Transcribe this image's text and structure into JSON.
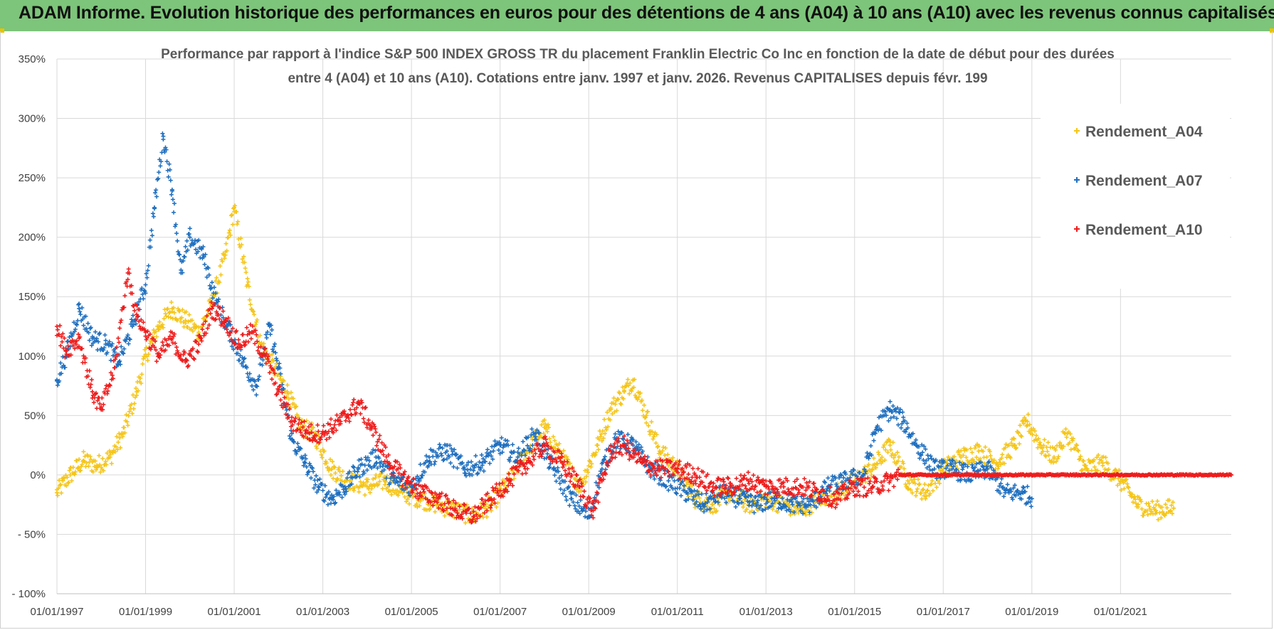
{
  "banner": {
    "title": "ADAM Informe. Evolution historique des performances en euros pour des détentions de 4 ans (A04) à 10 ans (A10) avec les revenus connus capitalisés"
  },
  "colors": {
    "banner_bg": "#7dc57a",
    "A04": "#f5c518",
    "A07": "#1f6fbf",
    "A10": "#ee1c1c",
    "grid": "#d9d9d9"
  },
  "chart_data": {
    "type": "scatter",
    "title": [
      "Performance par rapport à l'indice S&P 500 INDEX GROSS TR  du placement Franklin Electric Co Inc en fonction de la date de début pour des durées",
      "entre 4 (A04) et 10 ans (A10). Cotations entre janv. 1997 et janv. 2026. Revenus CAPITALISES depuis févr. 199"
    ],
    "xlabel": "",
    "ylabel": "",
    "x_range": [
      1997.0,
      2023.5
    ],
    "ylim": [
      -100,
      350
    ],
    "y_ticks": [
      -100,
      -50,
      0,
      50,
      100,
      150,
      200,
      250,
      300,
      350
    ],
    "y_tick_labels": [
      "- 100%",
      "- 50%",
      "0%",
      "50%",
      "100%",
      "150%",
      "200%",
      "250%",
      "300%",
      "350%"
    ],
    "x_tick_labels": [
      "01/01/1997",
      "01/01/1999",
      "01/01/2001",
      "01/01/2003",
      "01/01/2005",
      "01/01/2007",
      "01/01/2009",
      "01/01/2011",
      "01/01/2013",
      "01/01/2015",
      "01/01/2017",
      "01/01/2019",
      "01/01/2021"
    ],
    "grid": true,
    "legend_position": "top-right",
    "series": [
      {
        "name": "Rendement_A04",
        "x": [
          1997.0,
          1997.3,
          1997.6,
          1997.9,
          1998.2,
          1998.5,
          1998.8,
          1999.0,
          1999.3,
          1999.6,
          1999.9,
          2000.2,
          2000.5,
          2000.8,
          2001.0,
          2001.3,
          2001.6,
          2001.9,
          2002.2,
          2002.5,
          2002.8,
          2003.2,
          2003.6,
          2004.0,
          2004.4,
          2004.8,
          2005.2,
          2005.6,
          2006.0,
          2006.4,
          2006.8,
          2007.2,
          2007.6,
          2008.0,
          2008.4,
          2008.8,
          2009.2,
          2009.5,
          2009.8,
          2010.0,
          2010.3,
          2010.6,
          2011.0,
          2011.4,
          2011.8,
          2012.2,
          2012.6,
          2013.0,
          2013.4,
          2013.8,
          2014.2,
          2014.6,
          2015.0,
          2015.4,
          2015.8,
          2016.2,
          2016.6,
          2017.0,
          2017.4,
          2017.8,
          2018.2,
          2018.6,
          2018.9,
          2019.2,
          2019.5,
          2019.8,
          2020.2,
          2020.6,
          2021.0,
          2021.4,
          2021.8,
          2022.2
        ],
        "y": [
          -15,
          0,
          12,
          8,
          15,
          35,
          70,
          100,
          125,
          140,
          130,
          120,
          145,
          185,
          225,
          160,
          110,
          90,
          70,
          40,
          35,
          5,
          -5,
          -10,
          -5,
          -15,
          -20,
          -25,
          -30,
          -35,
          -25,
          -5,
          20,
          40,
          15,
          -10,
          25,
          55,
          70,
          80,
          50,
          20,
          5,
          -20,
          -25,
          -15,
          -25,
          -20,
          -25,
          -30,
          -20,
          -15,
          -5,
          5,
          25,
          -5,
          -15,
          5,
          15,
          20,
          10,
          25,
          45,
          25,
          15,
          35,
          5,
          10,
          -5,
          -25,
          -30,
          -28
        ]
      },
      {
        "name": "Rendement_A07",
        "x": [
          1997.0,
          1997.2,
          1997.5,
          1997.8,
          1998.1,
          1998.4,
          1998.7,
          1999.0,
          1999.2,
          1999.4,
          1999.6,
          1999.8,
          2000.0,
          2000.3,
          2000.6,
          2000.9,
          2001.2,
          2001.5,
          2001.8,
          2002.0,
          2002.3,
          2002.6,
          2002.9,
          2003.2,
          2003.5,
          2003.8,
          2004.2,
          2004.6,
          2005.0,
          2005.4,
          2005.8,
          2006.2,
          2006.6,
          2007.0,
          2007.4,
          2007.8,
          2008.2,
          2008.6,
          2009.0,
          2009.3,
          2009.6,
          2010.0,
          2010.4,
          2010.8,
          2011.2,
          2011.6,
          2012.0,
          2012.4,
          2012.8,
          2013.2,
          2013.6,
          2014.0,
          2014.4,
          2014.8,
          2015.2,
          2015.5,
          2015.8,
          2016.1,
          2016.4,
          2016.8,
          2017.2,
          2017.6,
          2018.0,
          2018.4,
          2018.8,
          2019.0
        ],
        "y": [
          80,
          100,
          140,
          115,
          110,
          95,
          125,
          160,
          225,
          285,
          240,
          170,
          200,
          185,
          145,
          120,
          95,
          75,
          125,
          90,
          30,
          10,
          -10,
          -20,
          -10,
          5,
          15,
          -5,
          -10,
          15,
          20,
          5,
          10,
          25,
          15,
          35,
          5,
          -20,
          -35,
          5,
          30,
          25,
          5,
          -5,
          -15,
          -25,
          -15,
          -20,
          -25,
          -20,
          -25,
          -25,
          -10,
          -5,
          0,
          40,
          55,
          45,
          25,
          5,
          5,
          0,
          5,
          -15,
          -15,
          -20
        ]
      },
      {
        "name": "Rendement_A10",
        "x": [
          1997.0,
          1997.2,
          1997.5,
          1997.8,
          1998.0,
          1998.3,
          1998.6,
          1998.8,
          1999.0,
          1999.3,
          1999.6,
          1999.9,
          2000.2,
          2000.5,
          2000.8,
          2001.1,
          2001.4,
          2001.7,
          2002.0,
          2002.3,
          2002.7,
          2003.0,
          2003.4,
          2003.8,
          2004.1,
          2004.5,
          2004.9,
          2005.2,
          2005.6,
          2006.0,
          2006.4,
          2006.8,
          2007.2,
          2007.6,
          2008.0,
          2008.4,
          2008.8,
          2009.1,
          2009.5,
          2009.8,
          2010.2,
          2010.6,
          2011.0,
          2011.4,
          2011.8,
          2012.2,
          2012.6,
          2013.0,
          2013.4,
          2013.8,
          2014.2,
          2014.6,
          2015.0,
          2015.4,
          2015.8,
          2016.0,
          2016.4,
          2017.0,
          2018.0,
          2019.0,
          2020.0,
          2021.0,
          2022.0,
          2023.0,
          2023.5
        ],
        "y": [
          125,
          105,
          115,
          70,
          55,
          90,
          170,
          135,
          120,
          100,
          115,
          95,
          110,
          140,
          130,
          110,
          120,
          100,
          70,
          45,
          35,
          35,
          45,
          60,
          40,
          10,
          -5,
          -15,
          -20,
          -30,
          -35,
          -20,
          -5,
          10,
          25,
          10,
          -10,
          -30,
          20,
          25,
          10,
          5,
          5,
          0,
          -10,
          -10,
          -5,
          -10,
          -10,
          -10,
          -15,
          -20,
          -10,
          -10,
          -5,
          0,
          0,
          0,
          0,
          0,
          0,
          0,
          0,
          0,
          0
        ]
      }
    ]
  }
}
